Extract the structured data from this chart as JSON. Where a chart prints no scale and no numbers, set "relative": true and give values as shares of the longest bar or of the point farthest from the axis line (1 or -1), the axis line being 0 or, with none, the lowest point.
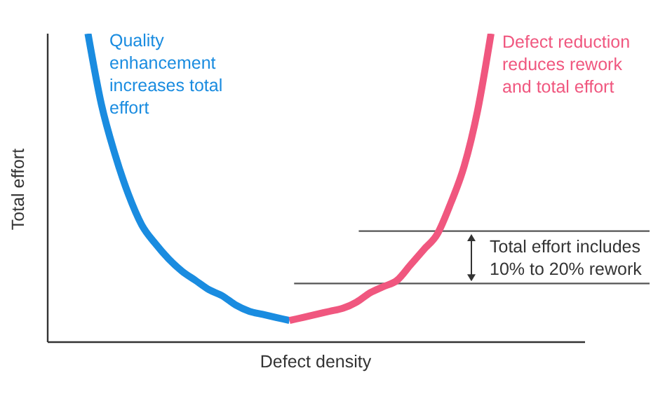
{
  "chart_data": {
    "type": "line",
    "relative": true,
    "xlabel": "Defect density",
    "ylabel": "Total effort",
    "categories": [
      null,
      null,
      null,
      null,
      null,
      null,
      null,
      null,
      null,
      null,
      null,
      null,
      null,
      null,
      null,
      null,
      null,
      null,
      null,
      null,
      null,
      null,
      null,
      null,
      null,
      null,
      null,
      null,
      null,
      null,
      null,
      null,
      null,
      null,
      null,
      null,
      null,
      null,
      null,
      null,
      null
    ],
    "series": [
      {
        "name": "Quality enhancement increases total effort",
        "color": "#1a8ce0",
        "values": [
          null,
          null,
          null,
          1.0,
          0.77,
          0.61,
          0.48,
          0.38,
          0.32,
          0.27,
          0.23,
          0.2,
          0.17,
          0.15,
          0.12,
          0.1,
          0.09,
          0.08,
          0.07,
          null,
          null,
          null,
          null,
          null,
          null,
          null,
          null,
          null,
          null,
          null,
          null,
          null,
          null,
          null,
          null,
          null,
          null,
          null,
          null,
          null,
          null
        ]
      },
      {
        "name": "Defect reduction reduces rework and total effort",
        "color": "#f0577f",
        "values": [
          null,
          null,
          null,
          null,
          null,
          null,
          null,
          null,
          null,
          null,
          null,
          null,
          null,
          null,
          null,
          null,
          null,
          null,
          0.07,
          0.08,
          0.09,
          0.1,
          0.11,
          0.13,
          0.16,
          0.18,
          0.2,
          0.25,
          0.3,
          0.35,
          0.45,
          0.57,
          0.75,
          1.0,
          null,
          null,
          null,
          null,
          null,
          null,
          null
        ]
      }
    ],
    "ref_lines": [
      {
        "axis": "y",
        "value": 0.36,
        "color": "#555555"
      },
      {
        "axis": "y",
        "value": 0.19,
        "color": "#555555"
      }
    ],
    "annotations": [
      "Total effort includes 10% to 20% rework"
    ],
    "marker": "none",
    "line_style": "solid",
    "grid": false
  }
}
